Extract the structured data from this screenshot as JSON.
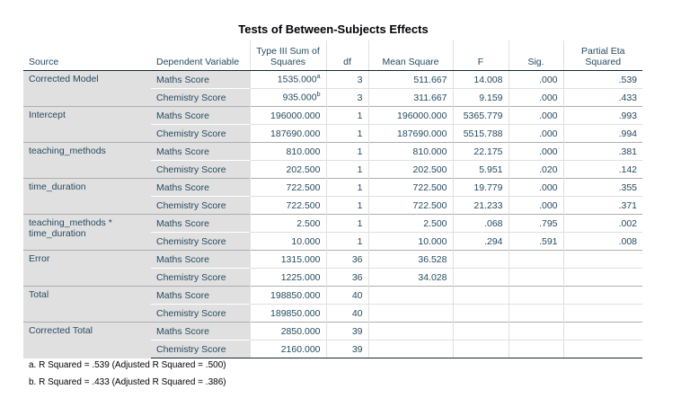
{
  "title": "Tests of Between-Subjects Effects",
  "headers": [
    "Source",
    "Dependent Variable",
    "Type III Sum of Squares",
    "df",
    "Mean Square",
    "F",
    "Sig.",
    "Partial Eta Squared"
  ],
  "groups": [
    {
      "source": "Corrected Model",
      "rows": [
        {
          "dv": "Maths Score",
          "ss": "1535.000",
          "sup": "a",
          "df": "3",
          "ms": "511.667",
          "f": "14.008",
          "sig": ".000",
          "eta": ".539"
        },
        {
          "dv": "Chemistry Score",
          "ss": "935.000",
          "sup": "b",
          "df": "3",
          "ms": "311.667",
          "f": "9.159",
          "sig": ".000",
          "eta": ".433"
        }
      ]
    },
    {
      "source": "Intercept",
      "rows": [
        {
          "dv": "Maths Score",
          "ss": "196000.000",
          "df": "1",
          "ms": "196000.000",
          "f": "5365.779",
          "sig": ".000",
          "eta": ".993"
        },
        {
          "dv": "Chemistry Score",
          "ss": "187690.000",
          "df": "1",
          "ms": "187690.000",
          "f": "5515.788",
          "sig": ".000",
          "eta": ".994"
        }
      ]
    },
    {
      "source": "teaching_methods",
      "rows": [
        {
          "dv": "Maths Score",
          "ss": "810.000",
          "df": "1",
          "ms": "810.000",
          "f": "22.175",
          "sig": ".000",
          "eta": ".381"
        },
        {
          "dv": "Chemistry Score",
          "ss": "202.500",
          "df": "1",
          "ms": "202.500",
          "f": "5.951",
          "sig": ".020",
          "eta": ".142"
        }
      ]
    },
    {
      "source": "time_duration",
      "rows": [
        {
          "dv": "Maths Score",
          "ss": "722.500",
          "df": "1",
          "ms": "722.500",
          "f": "19.779",
          "sig": ".000",
          "eta": ".355"
        },
        {
          "dv": "Chemistry Score",
          "ss": "722.500",
          "df": "1",
          "ms": "722.500",
          "f": "21.233",
          "sig": ".000",
          "eta": ".371"
        }
      ]
    },
    {
      "source": "teaching_methods * time_duration",
      "rows": [
        {
          "dv": "Maths Score",
          "ss": "2.500",
          "df": "1",
          "ms": "2.500",
          "f": ".068",
          "sig": ".795",
          "eta": ".002"
        },
        {
          "dv": "Chemistry Score",
          "ss": "10.000",
          "df": "1",
          "ms": "10.000",
          "f": ".294",
          "sig": ".591",
          "eta": ".008"
        }
      ]
    },
    {
      "source": "Error",
      "rows": [
        {
          "dv": "Maths Score",
          "ss": "1315.000",
          "df": "36",
          "ms": "36.528",
          "f": "",
          "sig": "",
          "eta": ""
        },
        {
          "dv": "Chemistry Score",
          "ss": "1225.000",
          "df": "36",
          "ms": "34.028",
          "f": "",
          "sig": "",
          "eta": ""
        }
      ]
    },
    {
      "source": "Total",
      "rows": [
        {
          "dv": "Maths Score",
          "ss": "198850.000",
          "df": "40",
          "ms": "",
          "f": "",
          "sig": "",
          "eta": ""
        },
        {
          "dv": "Chemistry Score",
          "ss": "189850.000",
          "df": "40",
          "ms": "",
          "f": "",
          "sig": "",
          "eta": ""
        }
      ]
    },
    {
      "source": "Corrected Total",
      "rows": [
        {
          "dv": "Maths Score",
          "ss": "2850.000",
          "df": "39",
          "ms": "",
          "f": "",
          "sig": "",
          "eta": ""
        },
        {
          "dv": "Chemistry Score",
          "ss": "2160.000",
          "df": "39",
          "ms": "",
          "f": "",
          "sig": "",
          "eta": ""
        }
      ]
    }
  ],
  "footnotes": [
    "a. R Squared = .539 (Adjusted R Squared = .500)",
    "b. R Squared = .433 (Adjusted R Squared = .386)"
  ]
}
